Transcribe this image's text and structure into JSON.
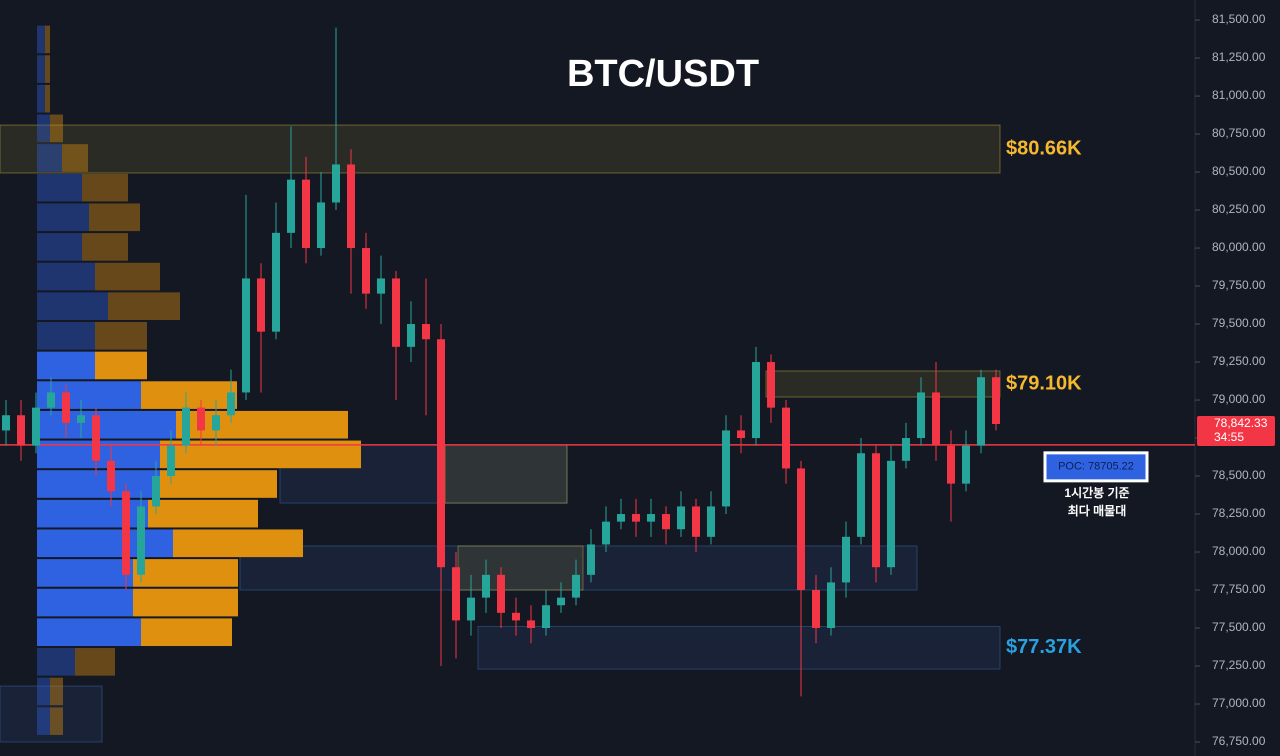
{
  "chart_data": {
    "type": "candlestick",
    "title": "BTC/USDT",
    "ylim": [
      76658,
      81632
    ],
    "yticks": [
      {
        "value": 76750,
        "label": "76,750.00"
      },
      {
        "value": 77000,
        "label": "77,000.00"
      },
      {
        "value": 77250,
        "label": "77,250.00"
      },
      {
        "value": 77500,
        "label": "77,500.00"
      },
      {
        "value": 77750,
        "label": "77,750.00"
      },
      {
        "value": 78000,
        "label": "78,000.00"
      },
      {
        "value": 78250,
        "label": "78,250.00"
      },
      {
        "value": 78500,
        "label": "78,500.00"
      },
      {
        "value": 78750,
        "label": "78,750.00"
      },
      {
        "value": 79000,
        "label": "79,000.00"
      },
      {
        "value": 79250,
        "label": "79,250.00"
      },
      {
        "value": 79500,
        "label": "79,500.00"
      },
      {
        "value": 79750,
        "label": "79,750.00"
      },
      {
        "value": 80000,
        "label": "80,000.00"
      },
      {
        "value": 80250,
        "label": "80,250.00"
      },
      {
        "value": 80500,
        "label": "80,500.00"
      },
      {
        "value": 80750,
        "label": "80,750.00"
      },
      {
        "value": 81000,
        "label": "81,000.00"
      },
      {
        "value": 81250,
        "label": "81,250.00"
      },
      {
        "value": 81500,
        "label": "81,500.00"
      }
    ],
    "grid": false,
    "up_color": "#26a69a",
    "down_color": "#f23645",
    "open": [
      78800,
      78900,
      78700,
      78950,
      79050,
      78850,
      78900,
      78600,
      78400,
      77850,
      78300,
      78500,
      78700,
      78950,
      78800,
      78900,
      79050,
      79800,
      79450,
      80100,
      80450,
      80000,
      80300,
      80550,
      80000,
      79700,
      79800,
      79350,
      79500,
      79400,
      77900,
      77550,
      77700,
      77850,
      77600,
      77550,
      77500,
      77650,
      77700,
      77850,
      78050,
      78200,
      78250,
      78200,
      78250,
      78150,
      78300,
      78100,
      78300,
      78800,
      78750,
      79250,
      78950,
      78550,
      77750,
      77500,
      77800,
      78100,
      78650,
      77900,
      78600,
      78750,
      79050,
      78700,
      78450,
      78700,
      79150
    ],
    "high": [
      79000,
      79000,
      79050,
      79150,
      79100,
      79000,
      78950,
      78700,
      78450,
      78400,
      78600,
      78800,
      79050,
      79000,
      79000,
      79200,
      80350,
      79900,
      80300,
      80800,
      80600,
      80500,
      81450,
      80650,
      80100,
      79950,
      79850,
      79650,
      79800,
      79500,
      78000,
      77850,
      77950,
      77900,
      77700,
      77650,
      77750,
      77800,
      77950,
      78150,
      78300,
      78350,
      78350,
      78350,
      78300,
      78400,
      78350,
      78400,
      78900,
      78900,
      79350,
      79300,
      79000,
      78600,
      77850,
      77900,
      78200,
      78750,
      78700,
      78700,
      78850,
      79150,
      79250,
      78800,
      78800,
      79200,
      79200
    ],
    "low": [
      78700,
      78600,
      78650,
      78900,
      78750,
      78750,
      78500,
      78300,
      77750,
      77800,
      78250,
      78450,
      78650,
      78700,
      78700,
      78850,
      79000,
      79050,
      79400,
      80000,
      79900,
      79950,
      80250,
      79700,
      79600,
      79500,
      79000,
      79250,
      78900,
      77250,
      77300,
      77450,
      77600,
      77500,
      77450,
      77400,
      77450,
      77600,
      77650,
      77800,
      78000,
      78150,
      78100,
      78100,
      78050,
      78100,
      78000,
      78050,
      78250,
      78650,
      78700,
      78850,
      78450,
      77050,
      77400,
      77450,
      77700,
      78050,
      77800,
      77850,
      78550,
      78700,
      78600,
      78200,
      78400,
      78650,
      78800
    ],
    "close": [
      78900,
      78700,
      78950,
      79050,
      78850,
      78900,
      78600,
      78400,
      77850,
      78300,
      78500,
      78700,
      78950,
      78800,
      78900,
      79050,
      79800,
      79450,
      80100,
      80450,
      80000,
      80300,
      80550,
      80000,
      79700,
      79800,
      79350,
      79500,
      79400,
      77900,
      77550,
      77700,
      77850,
      77600,
      77550,
      77500,
      77650,
      77700,
      77850,
      78050,
      78200,
      78250,
      78200,
      78250,
      78150,
      78300,
      78100,
      78300,
      78800,
      78750,
      79250,
      78950,
      78550,
      77750,
      77500,
      77800,
      78100,
      78650,
      77900,
      78600,
      78750,
      79050,
      78700,
      78450,
      78700,
      79150,
      78842.33
    ],
    "volume_profile": {
      "bins": [
        76790,
        76985,
        77180,
        77375,
        77570,
        77765,
        77960,
        78155,
        78350,
        78545,
        78740,
        78935,
        79130,
        79325,
        79520,
        79715,
        79910,
        80105,
        80300,
        80495,
        80690,
        80885,
        81080,
        81275,
        81470
      ],
      "buy": [
        13,
        13,
        38,
        104,
        96,
        96,
        136,
        111,
        123,
        123,
        139,
        104,
        58,
        58,
        71,
        58,
        45,
        52,
        45,
        25,
        13,
        8,
        8,
        8
      ],
      "sell": [
        13,
        13,
        40,
        91,
        105,
        105,
        130,
        110,
        117,
        201,
        172,
        96,
        52,
        52,
        72,
        65,
        46,
        51,
        46,
        26,
        13,
        5,
        5,
        5
      ],
      "buy_color": "#2f62e0",
      "sell_color": "#e0900f",
      "value_area": [
        77375,
        79325
      ]
    },
    "zones": [
      {
        "top": 80809,
        "bottom": 80494,
        "color": "#c9b13a",
        "label": "$80.66K",
        "label_color": "#f5b82e"
      },
      {
        "top": 79191,
        "bottom": 79020,
        "color": "#c9b13a",
        "label": "$79.10K",
        "label_color": "#f5b82e"
      },
      {
        "top": 78704,
        "bottom": 78322,
        "color": "#3b6fb6"
      },
      {
        "top": 78704,
        "bottom": 78322,
        "color": "#c9b13a"
      },
      {
        "top": 78040,
        "bottom": 77750,
        "color": "#3b6fb6"
      },
      {
        "top": 78040,
        "bottom": 77750,
        "color": "#c9b13a"
      },
      {
        "top": 77510,
        "bottom": 77230,
        "color": "#3b6fb6",
        "label": "$77.37K",
        "label_color": "#2ba0e0"
      },
      {
        "top": 77118,
        "bottom": 76750,
        "color": "#3b6fb6"
      }
    ],
    "poc": 78705.22,
    "poc_label": "POC: 78705.22",
    "poc_color": "#f23645",
    "annotation": [
      "1시간봉 기준",
      "최다 매물대"
    ],
    "last_price": {
      "value": 78842.33,
      "label": "78,842.33"
    },
    "countdown": "34:55"
  }
}
